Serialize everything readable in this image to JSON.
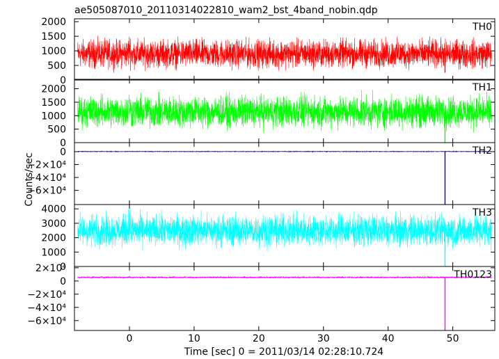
{
  "chart_data": {
    "type": "line",
    "title": "ae505087010_20110314022810_wam2_bst_4band_nobin.qdp",
    "xlabel": "Time [sec] 0 = 2011/03/14 02:28:10.724",
    "ylabel": "Counts/sec",
    "xlim": [
      -8.5,
      56.5
    ],
    "x_ticks": [
      0,
      10,
      20,
      30,
      40,
      50
    ],
    "x_tick_labels": [
      "0",
      "10",
      "20",
      "30",
      "40",
      "50"
    ],
    "panels": [
      {
        "name": "TH0",
        "color": "#ff0000",
        "ylim": [
          0,
          2100
        ],
        "y_ticks": [
          0,
          500,
          1000,
          1500,
          2000
        ],
        "y_tick_labels": [
          "0",
          "500",
          "1000",
          "1500",
          "2000"
        ],
        "baseline": 900,
        "noise": 230,
        "burst": {
          "x": 48.8,
          "value": 250
        }
      },
      {
        "name": "TH1",
        "color": "#00ff00",
        "ylim": [
          0,
          2350
        ],
        "y_ticks": [
          0,
          500,
          1000,
          1500,
          2000
        ],
        "y_tick_labels": [
          "0",
          "500",
          "1000",
          "1500",
          "2000"
        ],
        "baseline": 1150,
        "noise": 280,
        "burst": {
          "x": 48.8,
          "value": 0
        }
      },
      {
        "name": "TH2",
        "color": "#0000cc",
        "ylim": [
          -82000,
          14000
        ],
        "y_ticks": [
          0,
          -20000,
          -40000,
          -60000
        ],
        "y_tick_labels": [
          "0",
          "−2×10⁴",
          "−4×10⁴",
          "−6×10⁴"
        ],
        "baseline": 200,
        "noise": 250,
        "burst": {
          "x": 48.8,
          "value": -82000
        }
      },
      {
        "name": "TH3",
        "color": "#00ffff",
        "ylim": [
          0,
          4300
        ],
        "y_ticks": [
          0,
          1000,
          2000,
          3000,
          4000
        ],
        "y_tick_labels": [
          "0",
          "1000",
          "2000",
          "3000",
          "4000"
        ],
        "baseline": 2500,
        "noise": 520,
        "burst": {
          "x": 48.8,
          "value": 0
        }
      },
      {
        "name": "TH0123",
        "color": "#ff00ff",
        "ylim": [
          -75000,
          22000
        ],
        "y_ticks": [
          20000,
          0,
          -20000,
          -40000,
          -60000
        ],
        "y_tick_labels": [
          "2×10⁴",
          "0",
          "−2×10⁴",
          "−4×10⁴",
          "−6×10⁴"
        ],
        "baseline": 5500,
        "noise": 600,
        "burst": {
          "x": 48.8,
          "value": -75000
        }
      }
    ],
    "x_start": -8,
    "x_end": 56,
    "grid": false
  }
}
